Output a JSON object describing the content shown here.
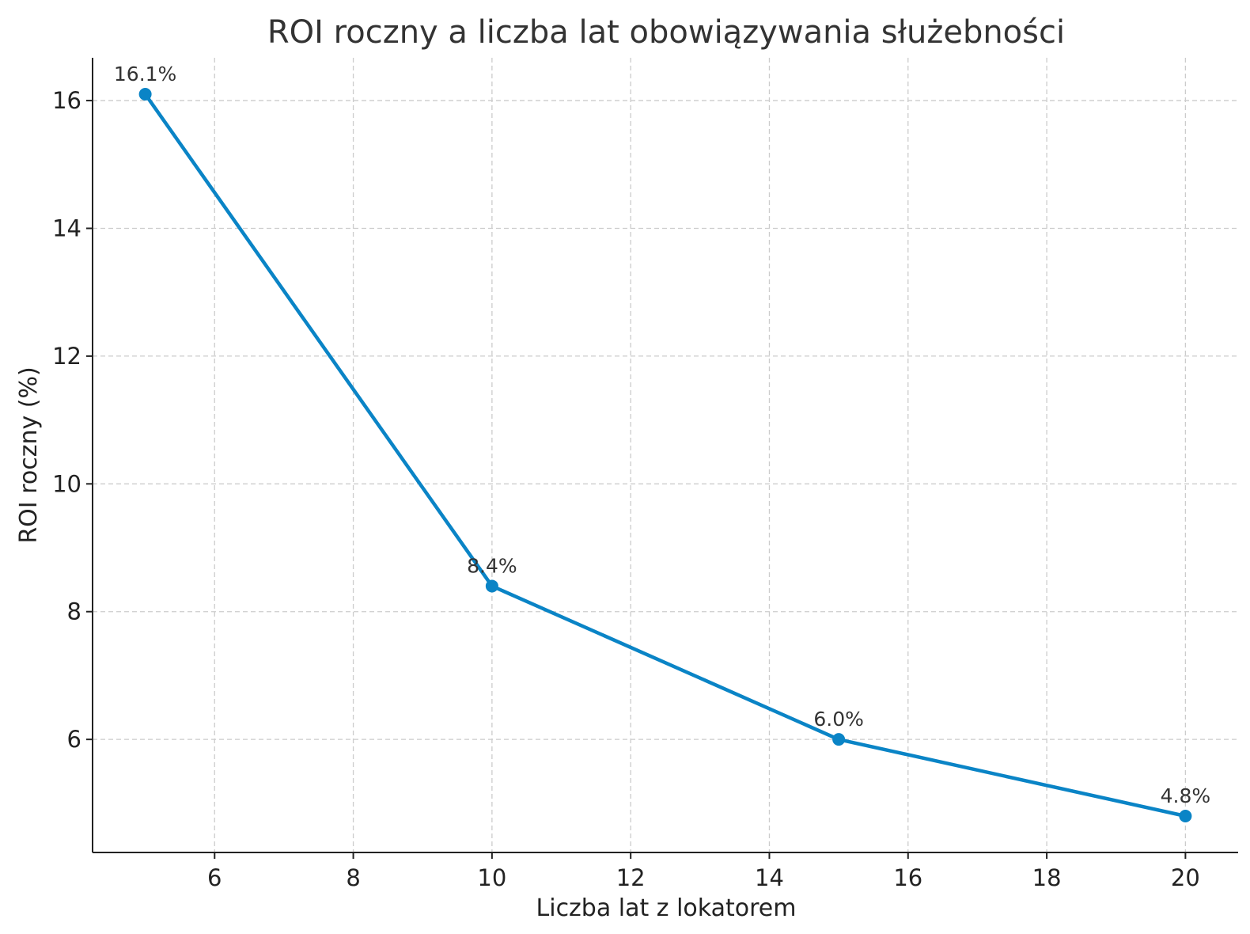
{
  "chart_data": {
    "type": "line",
    "title": "ROI roczny a liczba lat obowiązywania służebności",
    "xlabel": "Liczba lat z lokatorem",
    "ylabel": "ROI roczny (%)",
    "x": [
      5,
      10,
      15,
      20
    ],
    "series": [
      {
        "values": [
          16.1,
          8.4,
          6.0,
          4.8
        ],
        "labels": [
          "16.1%",
          "8.4%",
          "6.0%",
          "4.8%"
        ],
        "color": "#0a84c6"
      }
    ],
    "xlim": [
      4.24,
      20.76
    ],
    "ylim": [
      4.23,
      16.67
    ],
    "xticks": [
      6,
      8,
      10,
      12,
      14,
      16,
      18,
      20
    ],
    "yticks": [
      6,
      8,
      10,
      12,
      14,
      16
    ],
    "grid": true,
    "legend": "none"
  }
}
